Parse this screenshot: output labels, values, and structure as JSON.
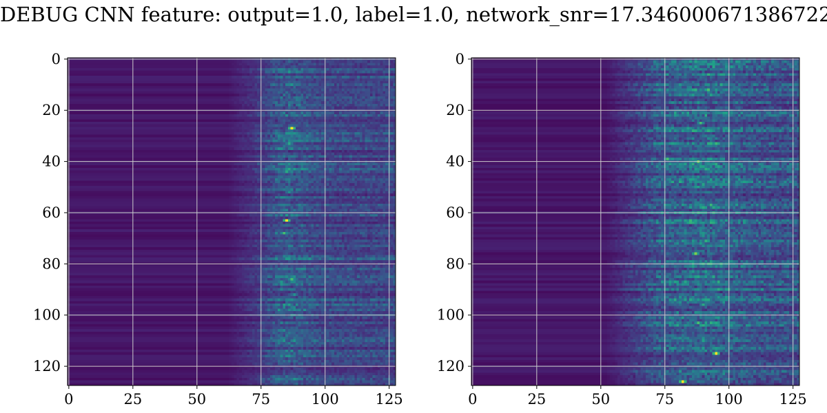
{
  "title": "DEBUG CNN feature: output=1.0, label=1.0, network_snr=17.346000671386722",
  "colors": {
    "background": "#ffffff",
    "grid": "#cccccc",
    "axis": "#000000",
    "colormap": "viridis",
    "viridis_low": "#440154",
    "viridis_mid": "#21918c",
    "viridis_high": "#fde725"
  },
  "chart_data": [
    {
      "type": "heatmap",
      "name": "left-panel",
      "colormap": "viridis",
      "xlim": [
        -0.5,
        127.5
      ],
      "ylim": [
        127.5,
        -0.5
      ],
      "xticks": [
        0,
        25,
        50,
        75,
        100,
        125
      ],
      "yticks": [
        0,
        20,
        40,
        60,
        80,
        100,
        120
      ],
      "xtick_labels": [
        "0",
        "25",
        "50",
        "75",
        "100",
        "125"
      ],
      "ytick_labels": [
        "0",
        "20",
        "40",
        "60",
        "80",
        "100",
        "120"
      ],
      "grid": true,
      "shape": [
        128,
        128
      ],
      "description_of_values": "dark (low) on columns 0-60, bright streaks concentrated around columns 80-90",
      "hotspots": [
        {
          "col": 87,
          "row": 27,
          "value": 1.0
        },
        {
          "col": 85,
          "row": 63,
          "value": 1.0
        },
        {
          "col": 84,
          "row": 68,
          "value": 0.7
        },
        {
          "col": 86,
          "row": 33,
          "value": 0.6
        },
        {
          "col": 85,
          "row": 44,
          "value": 0.6
        },
        {
          "col": 87,
          "row": 86,
          "value": 0.7
        },
        {
          "col": 86,
          "row": 52,
          "value": 0.5
        },
        {
          "col": 88,
          "row": 92,
          "value": 0.5
        }
      ]
    },
    {
      "type": "heatmap",
      "name": "right-panel",
      "colormap": "viridis",
      "xlim": [
        -0.5,
        127.5
      ],
      "ylim": [
        127.5,
        -0.5
      ],
      "xticks": [
        0,
        25,
        50,
        75,
        100,
        125
      ],
      "yticks": [
        0,
        20,
        40,
        60,
        80,
        100,
        120
      ],
      "xtick_labels": [
        "0",
        "25",
        "50",
        "75",
        "100",
        "125"
      ],
      "ytick_labels": [
        "0",
        "20",
        "40",
        "60",
        "80",
        "100",
        "120"
      ],
      "grid": true,
      "shape": [
        128,
        128
      ],
      "description_of_values": "dark on columns 0-55, noisy bright speckles from column 75 onward",
      "hotspots": [
        {
          "col": 82,
          "row": 126,
          "value": 1.0
        },
        {
          "col": 95,
          "row": 115,
          "value": 1.0
        },
        {
          "col": 88,
          "row": 40,
          "value": 0.8
        },
        {
          "col": 89,
          "row": 25,
          "value": 0.7
        },
        {
          "col": 87,
          "row": 76,
          "value": 0.8
        },
        {
          "col": 88,
          "row": 103,
          "value": 0.7
        },
        {
          "col": 76,
          "row": 39,
          "value": 0.7
        },
        {
          "col": 90,
          "row": 96,
          "value": 0.6
        }
      ]
    }
  ]
}
